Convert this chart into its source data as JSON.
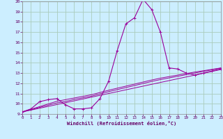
{
  "xlabel": "Windchill (Refroidissement éolien,°C)",
  "background_color": "#cceeff",
  "grid_color": "#aaccbb",
  "line_color": "#990099",
  "x_values": [
    0,
    1,
    2,
    3,
    4,
    5,
    6,
    7,
    8,
    9,
    10,
    11,
    12,
    13,
    14,
    15,
    16,
    17,
    18,
    19,
    20,
    21,
    22,
    23
  ],
  "y_main": [
    9.2,
    9.5,
    10.2,
    10.4,
    10.5,
    9.9,
    9.5,
    9.5,
    9.6,
    10.5,
    12.2,
    15.2,
    17.8,
    18.4,
    20.2,
    19.2,
    17.0,
    13.5,
    13.4,
    13.0,
    12.8,
    13.0,
    13.2,
    13.4
  ],
  "y_line1": [
    9.2,
    9.38,
    9.56,
    9.74,
    9.92,
    10.1,
    10.28,
    10.46,
    10.64,
    10.82,
    11.0,
    11.18,
    11.36,
    11.54,
    11.72,
    11.9,
    12.08,
    12.26,
    12.44,
    12.62,
    12.8,
    12.98,
    13.16,
    13.34
  ],
  "y_line2": [
    9.2,
    9.42,
    9.64,
    9.86,
    10.08,
    10.22,
    10.42,
    10.58,
    10.74,
    10.96,
    11.18,
    11.38,
    11.58,
    11.78,
    11.98,
    12.18,
    12.36,
    12.52,
    12.68,
    12.84,
    13.0,
    13.16,
    13.32,
    13.48
  ],
  "y_line3": [
    9.2,
    9.46,
    9.72,
    9.98,
    10.24,
    10.4,
    10.56,
    10.72,
    10.88,
    11.1,
    11.32,
    11.52,
    11.72,
    11.92,
    12.12,
    12.32,
    12.5,
    12.65,
    12.8,
    12.95,
    13.1,
    13.23,
    13.36,
    13.5
  ],
  "ylim": [
    9,
    20
  ],
  "xlim": [
    0,
    23
  ],
  "yticks": [
    9,
    10,
    11,
    12,
    13,
    14,
    15,
    16,
    17,
    18,
    19,
    20
  ],
  "xticks": [
    0,
    1,
    2,
    3,
    4,
    5,
    6,
    7,
    8,
    9,
    10,
    11,
    12,
    13,
    14,
    15,
    16,
    17,
    18,
    19,
    20,
    21,
    22,
    23
  ]
}
